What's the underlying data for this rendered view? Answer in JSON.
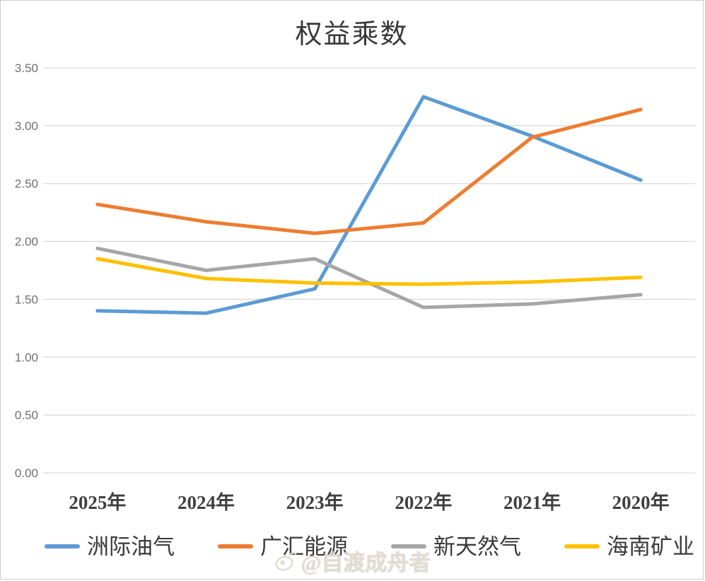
{
  "chart_data": {
    "type": "line",
    "title": "权益乘数",
    "categories": [
      "2025年",
      "2024年",
      "2023年",
      "2022年",
      "2021年",
      "2020年"
    ],
    "series": [
      {
        "name": "洲际油气",
        "color": "#5B9BD5",
        "values": [
          1.4,
          1.38,
          1.59,
          3.25,
          2.91,
          2.53
        ]
      },
      {
        "name": "广汇能源",
        "color": "#ED7D31",
        "values": [
          2.32,
          2.17,
          2.07,
          2.16,
          2.9,
          3.14
        ]
      },
      {
        "name": "新天然气",
        "color": "#A6A6A6",
        "values": [
          1.94,
          1.75,
          1.85,
          1.43,
          1.46,
          1.54
        ]
      },
      {
        "name": "海南矿业",
        "color": "#FFC000",
        "values": [
          1.85,
          1.68,
          1.64,
          1.63,
          1.65,
          1.69
        ]
      }
    ],
    "xlabel": "",
    "ylabel": "",
    "ylim": [
      0,
      3.5
    ],
    "ytick_step": 0.5,
    "ytick_labels": [
      "0.00",
      "0.50",
      "1.00",
      "1.50",
      "2.00",
      "2.50",
      "3.00",
      "3.50"
    ],
    "grid": "horizontal",
    "legend_position": "bottom"
  },
  "watermark": {
    "text": "@自渡成舟者",
    "icon": "weibo-eye-icon"
  },
  "colors": {
    "background": "#FFFFFF",
    "border": "#CCCCCC",
    "gridline": "#D9D9D9",
    "title_text": "#383838",
    "y_label_text": "#6F6F6F",
    "x_label_text": "#3F3F3F",
    "watermark_text": "#DED8CD"
  }
}
